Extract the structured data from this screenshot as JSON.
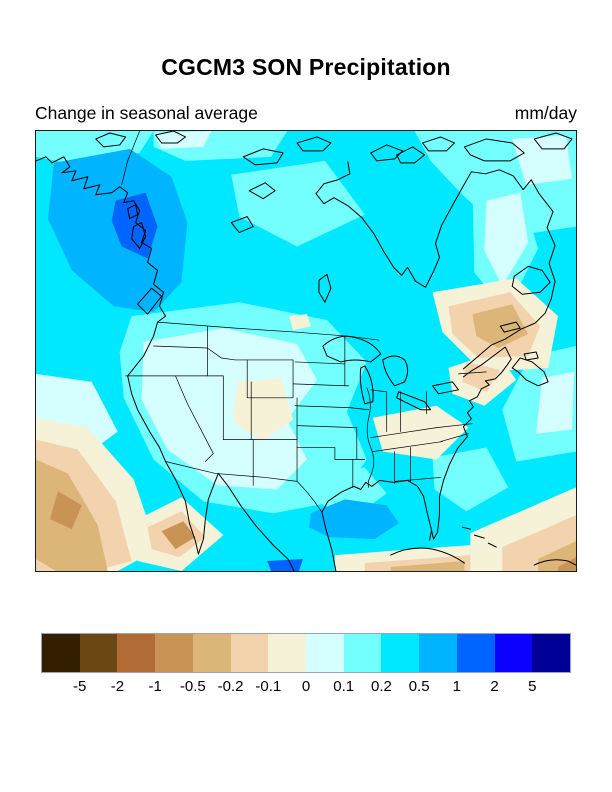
{
  "title": "CGCM3 SON Precipitation",
  "subtitle": {
    "left": "Change in seasonal average",
    "right": "mm/day"
  },
  "chart_data": {
    "type": "heatmap",
    "variant": "filled-contour-geographic-map",
    "title": "CGCM3 SON Precipitation",
    "subtitle": "Change in seasonal average",
    "units": "mm/day",
    "model": "CGCM3",
    "season": "SON",
    "region": "North America (Canada, United States, Mexico, western Atlantic and Pacific)",
    "grid": false,
    "legend_position": "bottom",
    "colorbar": {
      "tick_labels": [
        "-5",
        "-2",
        "-1",
        "-0.5",
        "-0.2",
        "-0.1",
        "0",
        "0.1",
        "0.2",
        "0.5",
        "1",
        "2",
        "5"
      ],
      "colors": [
        "#331f00",
        "#6b4713",
        "#b16c35",
        "#c99355",
        "#dcb578",
        "#f2d3ae",
        "#f5f2d8",
        "#d5feff",
        "#74ffff",
        "#00e8ff",
        "#00b4ff",
        "#0064ff",
        "#0c00ff",
        "#000096"
      ]
    },
    "anomaly_regions": [
      {
        "area": "British Columbia / Alaska panhandle coast",
        "change_mm_day": "+0.5 to +2"
      },
      {
        "area": "Most of Canada, Hudson Bay and adjacent oceans",
        "change_mm_day": "+0.2 to +0.5"
      },
      {
        "area": "Northern Canada / Arctic patches",
        "change_mm_day": "+0.1 to +0.2"
      },
      {
        "area": "Western and central United States interior",
        "change_mm_day": "0 to +0.1"
      },
      {
        "area": "Colorado / Four Corners patch",
        "change_mm_day": "-0.1 to 0"
      },
      {
        "area": "Tennessee valley and mid-Atlantic states",
        "change_mm_day": "-0.1 to 0"
      },
      {
        "area": "Northeastern US (New York / New England)",
        "change_mm_day": "-0.2 to -0.1"
      },
      {
        "area": "Gulf of St. Lawrence / Canadian Maritimes",
        "change_mm_day": "-0.5 to -0.2"
      },
      {
        "area": "Gulf of Mexico off Louisiana",
        "change_mm_day": "+0.5 to +1"
      },
      {
        "area": "Subtropical Pacific (southwest corner of map)",
        "change_mm_day": "-1 to -0.2"
      },
      {
        "area": "South of Baja California",
        "change_mm_day": "-1 to -0.5"
      },
      {
        "area": "Caribbean / southeast corner of map",
        "change_mm_day": "-1 to -0.2"
      }
    ]
  }
}
